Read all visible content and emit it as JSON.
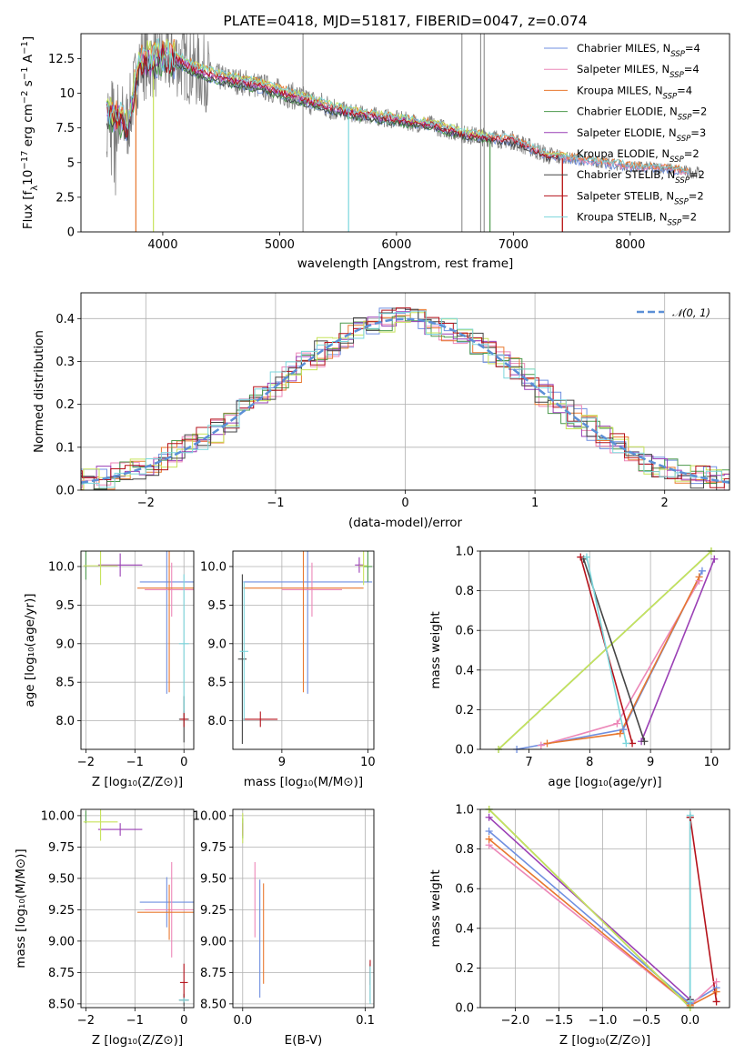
{
  "colors": {
    "chabrier_miles": "#6f8fe0",
    "salpeter_miles": "#ec87b8",
    "kroupa_miles": "#e8782f",
    "chabrier_elodie": "#4c9a4c",
    "salpeter_elodie": "#9a3fb5",
    "kroupa_elodie": "#c7e35c",
    "chabrier_stelib": "#444444",
    "salpeter_stelib": "#b5121b",
    "kroupa_stelib": "#7bd6dc",
    "observed": "#808080",
    "normal": "#5b8fd6",
    "grid": "#b0b0b0"
  },
  "chart_data": [
    {
      "id": "spectrum",
      "type": "line",
      "title": "PLATE=0418, MJD=51817, FIBERID=0047, z=0.074",
      "xlabel": "wavelength [Angstrom, rest frame]",
      "ylabel": "Flux [f_λ 10^-17 erg cm^-2 s^-1 A^-1]",
      "xlim": [
        3300,
        8850
      ],
      "ylim": [
        0,
        14.3
      ],
      "xticks": [
        4000,
        5000,
        6000,
        7000,
        8000
      ],
      "yticks": [
        0.0,
        2.5,
        5.0,
        7.5,
        10.0,
        12.5
      ],
      "grid": false,
      "legend": "top-right",
      "continuum_points": {
        "x": [
          3550,
          3700,
          3800,
          3900,
          4000,
          4100,
          4200,
          4300,
          4500,
          4800,
          5000,
          5300,
          5600,
          6000,
          6300,
          6600,
          7000,
          7300,
          7600,
          8000,
          8300,
          8500
        ],
        "y": [
          8.6,
          7.8,
          12.2,
          12.3,
          12.4,
          12.5,
          12.1,
          11.6,
          11.1,
          10.6,
          10.1,
          9.3,
          8.6,
          8.1,
          7.7,
          7.0,
          6.6,
          5.5,
          5.2,
          4.7,
          4.6,
          4.3
        ]
      },
      "series": [
        {
          "name": "Chabrier MILES, N_SSP=4",
          "color_key": "chabrier_miles"
        },
        {
          "name": "Salpeter MILES, N_SSP=4",
          "color_key": "salpeter_miles"
        },
        {
          "name": "Kroupa MILES, N_SSP=4",
          "color_key": "kroupa_miles"
        },
        {
          "name": "Chabrier ELODIE, N_SSP=2",
          "color_key": "chabrier_elodie"
        },
        {
          "name": "Salpeter ELODIE, N_SSP=3",
          "color_key": "salpeter_elodie"
        },
        {
          "name": "Kroupa ELODIE, N_SSP=2",
          "color_key": "kroupa_elodie"
        },
        {
          "name": "Chabrier STELIB, N_SSP=2",
          "color_key": "chabrier_stelib"
        },
        {
          "name": "Salpeter STELIB, N_SSP=2",
          "color_key": "salpeter_stelib"
        },
        {
          "name": "Kroupa STELIB, N_SSP=2",
          "color_key": "kroupa_stelib"
        }
      ]
    },
    {
      "id": "residuals",
      "type": "step",
      "xlabel": "(data-model)/error",
      "ylabel": "Normed distribution",
      "xlim": [
        -2.5,
        2.5
      ],
      "ylim": [
        0,
        0.46
      ],
      "xticks": [
        -2,
        -1,
        0,
        1,
        2
      ],
      "yticks": [
        0.0,
        0.1,
        0.2,
        0.3,
        0.4
      ],
      "grid": true,
      "legend": "top-right",
      "normal_label": "𝒩(0, 1)"
    },
    {
      "id": "age_vs_Z",
      "type": "errorbar",
      "xlabel": "Z [log10(Z/Z⊙)]",
      "ylabel": "age [log10(age/yr)]",
      "xlim": [
        -2.1,
        0.2
      ],
      "ylim": [
        7.63,
        10.2
      ],
      "xticks": [
        -2,
        -1,
        0
      ],
      "yticks": [
        8.0,
        8.5,
        9.0,
        9.5,
        10.0
      ],
      "points": [
        {
          "x": -0.35,
          "y": 9.8,
          "xerr": 0.55,
          "yerr": 1.45,
          "color_key": "chabrier_miles"
        },
        {
          "x": -0.25,
          "y": 9.7,
          "xerr": 0.55,
          "yerr": 0.35,
          "color_key": "salpeter_miles"
        },
        {
          "x": -0.3,
          "y": 9.72,
          "xerr": 0.65,
          "yerr": 1.35,
          "color_key": "kroupa_miles"
        },
        {
          "x": -2.0,
          "y": 10.03,
          "xerr": 0.0,
          "yerr": 0.2,
          "color_key": "chabrier_elodie"
        },
        {
          "x": -1.3,
          "y": 10.02,
          "xerr": 0.45,
          "yerr": 0.15,
          "color_key": "salpeter_elodie"
        },
        {
          "x": -1.7,
          "y": 10.01,
          "xerr": 0.35,
          "yerr": 0.25,
          "color_key": "kroupa_elodie"
        },
        {
          "x": 0.0,
          "y": 8.02,
          "xerr": 0.1,
          "yerr": 0.3,
          "color_key": "chabrier_stelib"
        },
        {
          "x": 0.0,
          "y": 8.02,
          "xerr": 0.08,
          "yerr": 0.1,
          "color_key": "salpeter_stelib"
        },
        {
          "x": 0.0,
          "y": 9.0,
          "xerr": 0.1,
          "yerr": 0.9,
          "color_key": "kroupa_stelib"
        }
      ]
    },
    {
      "id": "age_vs_mass",
      "type": "errorbar",
      "xlabel": "mass [log10(M/M⊙)]",
      "ylabel": "",
      "xlim": [
        8.43,
        10.07
      ],
      "ylim": [
        7.63,
        10.2
      ],
      "xticks": [
        9,
        10
      ],
      "yticks": [
        8.0,
        8.5,
        9.0,
        9.5,
        10.0
      ],
      "points": [
        {
          "x": 9.3,
          "y": 9.8,
          "xerr": 0.75,
          "yerr": 1.45,
          "color_key": "chabrier_miles"
        },
        {
          "x": 9.35,
          "y": 9.7,
          "xerr": 0.35,
          "yerr": 0.35,
          "color_key": "salpeter_miles"
        },
        {
          "x": 9.25,
          "y": 9.72,
          "xerr": 0.7,
          "yerr": 1.35,
          "color_key": "kroupa_miles"
        },
        {
          "x": 10.0,
          "y": 10.0,
          "xerr": 0.05,
          "yerr": 0.2,
          "color_key": "chabrier_elodie"
        },
        {
          "x": 9.9,
          "y": 10.02,
          "xerr": 0.05,
          "yerr": 0.1,
          "color_key": "salpeter_elodie"
        },
        {
          "x": 9.95,
          "y": 10.01,
          "xerr": 0.05,
          "yerr": 0.25,
          "color_key": "kroupa_elodie"
        },
        {
          "x": 8.54,
          "y": 8.8,
          "xerr": 0.05,
          "yerr": 1.1,
          "color_key": "chabrier_stelib"
        },
        {
          "x": 8.75,
          "y": 8.02,
          "xerr": 0.2,
          "yerr": 0.1,
          "color_key": "salpeter_stelib"
        },
        {
          "x": 8.56,
          "y": 8.9,
          "xerr": 0.05,
          "yerr": 0.9,
          "color_key": "kroupa_stelib"
        }
      ]
    },
    {
      "id": "weight_vs_age",
      "type": "line",
      "xlabel": "age [log10(age/yr)]",
      "ylabel": "mass weight",
      "xlim": [
        6.2,
        10.3
      ],
      "ylim": [
        0,
        1.0
      ],
      "xticks": [
        7,
        8,
        9,
        10
      ],
      "yticks": [
        0.0,
        0.2,
        0.4,
        0.6,
        0.8,
        1.0
      ],
      "grid": true,
      "series": [
        {
          "color_key": "chabrier_miles",
          "x": [
            6.8,
            8.55,
            9.85
          ],
          "y": [
            0.0,
            0.1,
            0.9
          ]
        },
        {
          "color_key": "salpeter_miles",
          "x": [
            7.2,
            8.45,
            9.8
          ],
          "y": [
            0.02,
            0.13,
            0.85
          ]
        },
        {
          "color_key": "kroupa_miles",
          "x": [
            7.3,
            8.5,
            9.8
          ],
          "y": [
            0.03,
            0.08,
            0.87
          ]
        },
        {
          "color_key": "chabrier_elodie",
          "x": [
            6.5,
            10.0
          ],
          "y": [
            0.0,
            1.0
          ]
        },
        {
          "color_key": "salpeter_elodie",
          "x": [
            8.85,
            10.05
          ],
          "y": [
            0.04,
            0.96
          ]
        },
        {
          "color_key": "kroupa_elodie",
          "x": [
            6.5,
            10.0
          ],
          "y": [
            0.0,
            1.0
          ]
        },
        {
          "color_key": "chabrier_stelib",
          "x": [
            7.9,
            8.9
          ],
          "y": [
            0.96,
            0.04
          ]
        },
        {
          "color_key": "salpeter_stelib",
          "x": [
            7.85,
            8.7
          ],
          "y": [
            0.97,
            0.03
          ]
        },
        {
          "color_key": "kroupa_stelib",
          "x": [
            7.95,
            8.6
          ],
          "y": [
            0.97,
            0.03
          ]
        }
      ]
    },
    {
      "id": "mass_vs_Z",
      "type": "errorbar",
      "xlabel": "Z [log10(Z/Z⊙)]",
      "ylabel": "mass [log10(M/M⊙)]",
      "xlim": [
        -2.1,
        0.2
      ],
      "ylim": [
        8.47,
        10.05
      ],
      "xticks": [
        -2,
        -1,
        0
      ],
      "yticks": [
        8.5,
        8.75,
        9.0,
        9.25,
        9.5,
        9.75,
        10.0
      ],
      "points": [
        {
          "x": -0.35,
          "y": 9.31,
          "xerr": 0.55,
          "yerr": 0.2,
          "color_key": "chabrier_miles"
        },
        {
          "x": -0.25,
          "y": 9.25,
          "xerr": 0.55,
          "yerr": 0.38,
          "color_key": "salpeter_miles"
        },
        {
          "x": -0.3,
          "y": 9.23,
          "xerr": 0.65,
          "yerr": 0.22,
          "color_key": "kroupa_miles"
        },
        {
          "x": -2.0,
          "y": 9.99,
          "xerr": 0.0,
          "yerr": 0.05,
          "color_key": "chabrier_elodie"
        },
        {
          "x": -1.3,
          "y": 9.89,
          "xerr": 0.45,
          "yerr": 0.05,
          "color_key": "salpeter_elodie"
        },
        {
          "x": -1.7,
          "y": 9.95,
          "xerr": 0.35,
          "yerr": 0.15,
          "color_key": "kroupa_elodie"
        },
        {
          "x": 0.0,
          "y": 8.53,
          "xerr": 0.1,
          "yerr": 0.05,
          "color_key": "chabrier_stelib"
        },
        {
          "x": 0.0,
          "y": 8.67,
          "xerr": 0.08,
          "yerr": 0.15,
          "color_key": "salpeter_stelib"
        },
        {
          "x": 0.0,
          "y": 8.53,
          "xerr": 0.1,
          "yerr": 0.02,
          "color_key": "kroupa_stelib"
        }
      ]
    },
    {
      "id": "mass_vs_ebv",
      "type": "errorbar",
      "xlabel": "E(B-V)",
      "ylabel": "",
      "xlim": [
        -0.008,
        0.107
      ],
      "ylim": [
        8.47,
        10.05
      ],
      "xticks": [
        0.0,
        0.1
      ],
      "yticks": [
        8.5,
        8.75,
        9.0,
        9.25,
        9.5,
        9.75,
        10.0
      ],
      "points": [
        {
          "x": 0.014,
          "y": 9.02,
          "xerr": 0.0,
          "yerr": 0.47,
          "color_key": "chabrier_miles"
        },
        {
          "x": 0.01,
          "y": 9.33,
          "xerr": 0.0,
          "yerr": 0.3,
          "color_key": "salpeter_miles"
        },
        {
          "x": 0.017,
          "y": 9.06,
          "xerr": 0.0,
          "yerr": 0.4,
          "color_key": "kroupa_miles"
        },
        {
          "x": 0.0,
          "y": 9.9,
          "xerr": 0.0,
          "yerr": 0.08,
          "color_key": "chabrier_elodie"
        },
        {
          "x": 0.0,
          "y": 9.89,
          "xerr": 0.0,
          "yerr": 0.05,
          "color_key": "salpeter_elodie"
        },
        {
          "x": 0.0,
          "y": 9.9,
          "xerr": 0.0,
          "yerr": 0.12,
          "color_key": "kroupa_elodie"
        },
        {
          "x": 0.104,
          "y": 8.67,
          "xerr": 0.0,
          "yerr": 0.15,
          "color_key": "chabrier_stelib"
        },
        {
          "x": 0.104,
          "y": 8.75,
          "xerr": 0.0,
          "yerr": 0.1,
          "color_key": "salpeter_stelib"
        },
        {
          "x": 0.104,
          "y": 8.65,
          "xerr": 0.0,
          "yerr": 0.15,
          "color_key": "kroupa_stelib"
        }
      ]
    },
    {
      "id": "weight_vs_Z",
      "type": "line",
      "xlabel": "Z [log10(Z/Z⊙)]",
      "ylabel": "mass weight",
      "xlim": [
        -2.4,
        0.45
      ],
      "ylim": [
        0,
        1.0
      ],
      "xticks": [
        -2.0,
        -1.5,
        -1.0,
        -0.5,
        0.0
      ],
      "yticks": [
        0.0,
        0.2,
        0.4,
        0.6,
        0.8,
        1.0
      ],
      "grid": true,
      "series": [
        {
          "color_key": "chabrier_miles",
          "x": [
            -2.3,
            0.0,
            0.3
          ],
          "y": [
            0.89,
            0.02,
            0.1
          ]
        },
        {
          "color_key": "salpeter_miles",
          "x": [
            -2.3,
            0.0,
            0.3
          ],
          "y": [
            0.82,
            0.01,
            0.13
          ]
        },
        {
          "color_key": "kroupa_miles",
          "x": [
            -2.3,
            0.0,
            0.3
          ],
          "y": [
            0.85,
            0.01,
            0.08
          ]
        },
        {
          "color_key": "chabrier_elodie",
          "x": [
            -2.3,
            0.0
          ],
          "y": [
            1.0,
            0.0
          ]
        },
        {
          "color_key": "salpeter_elodie",
          "x": [
            -2.3,
            0.0
          ],
          "y": [
            0.96,
            0.04
          ]
        },
        {
          "color_key": "kroupa_elodie",
          "x": [
            -2.3,
            0.0
          ],
          "y": [
            1.0,
            0.0
          ]
        },
        {
          "color_key": "chabrier_stelib",
          "x": [
            0.0,
            0.0
          ],
          "y": [
            0.96,
            0.04
          ]
        },
        {
          "color_key": "salpeter_stelib",
          "x": [
            0.0,
            0.3
          ],
          "y": [
            0.96,
            0.03
          ]
        },
        {
          "color_key": "kroupa_stelib",
          "x": [
            0.0,
            0.0
          ],
          "y": [
            0.97,
            0.03
          ]
        }
      ]
    }
  ]
}
